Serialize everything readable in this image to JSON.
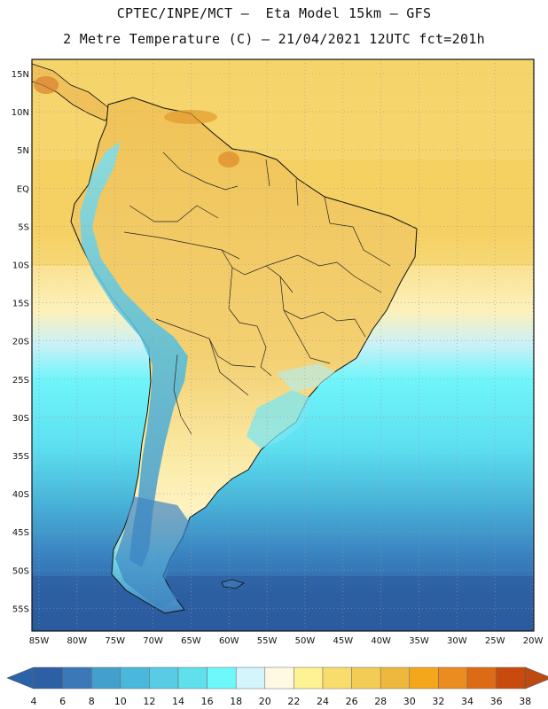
{
  "title": {
    "line1": "CPTEC/INPE/MCT –  Eta Model 15km – GFS",
    "line2": "2 Metre Temperature (C) – 21/04/2021 12UTC fct=201h"
  },
  "latitude_labels": [
    "15N",
    "10N",
    "5N",
    "EQ",
    "5S",
    "10S",
    "15S",
    "20S",
    "25S",
    "30S",
    "35S",
    "40S",
    "45S",
    "50S",
    "55S"
  ],
  "longitude_labels": [
    "85W",
    "80W",
    "75W",
    "70W",
    "65W",
    "60W",
    "55W",
    "50W",
    "45W",
    "40W",
    "35W",
    "30W",
    "25W",
    "20W"
  ],
  "colorbar": {
    "ticks": [
      "4",
      "6",
      "8",
      "10",
      "12",
      "14",
      "16",
      "18",
      "20",
      "22",
      "24",
      "26",
      "28",
      "30",
      "32",
      "34",
      "36",
      "38"
    ],
    "colors": [
      "#2c5fa3",
      "#3b78b8",
      "#43a0cc",
      "#4ab7dc",
      "#57cce4",
      "#5fe0ec",
      "#6ff8fa",
      "#d4f5fb",
      "#fff8e2",
      "#fff294",
      "#f8dc6c",
      "#f2cc54",
      "#eeb83e",
      "#f4a71a",
      "#ea8c20",
      "#dd6a14",
      "#c84a0c"
    ],
    "low_arrow_color": "#2c62a8",
    "high_arrow_color": "#be4a12"
  }
}
